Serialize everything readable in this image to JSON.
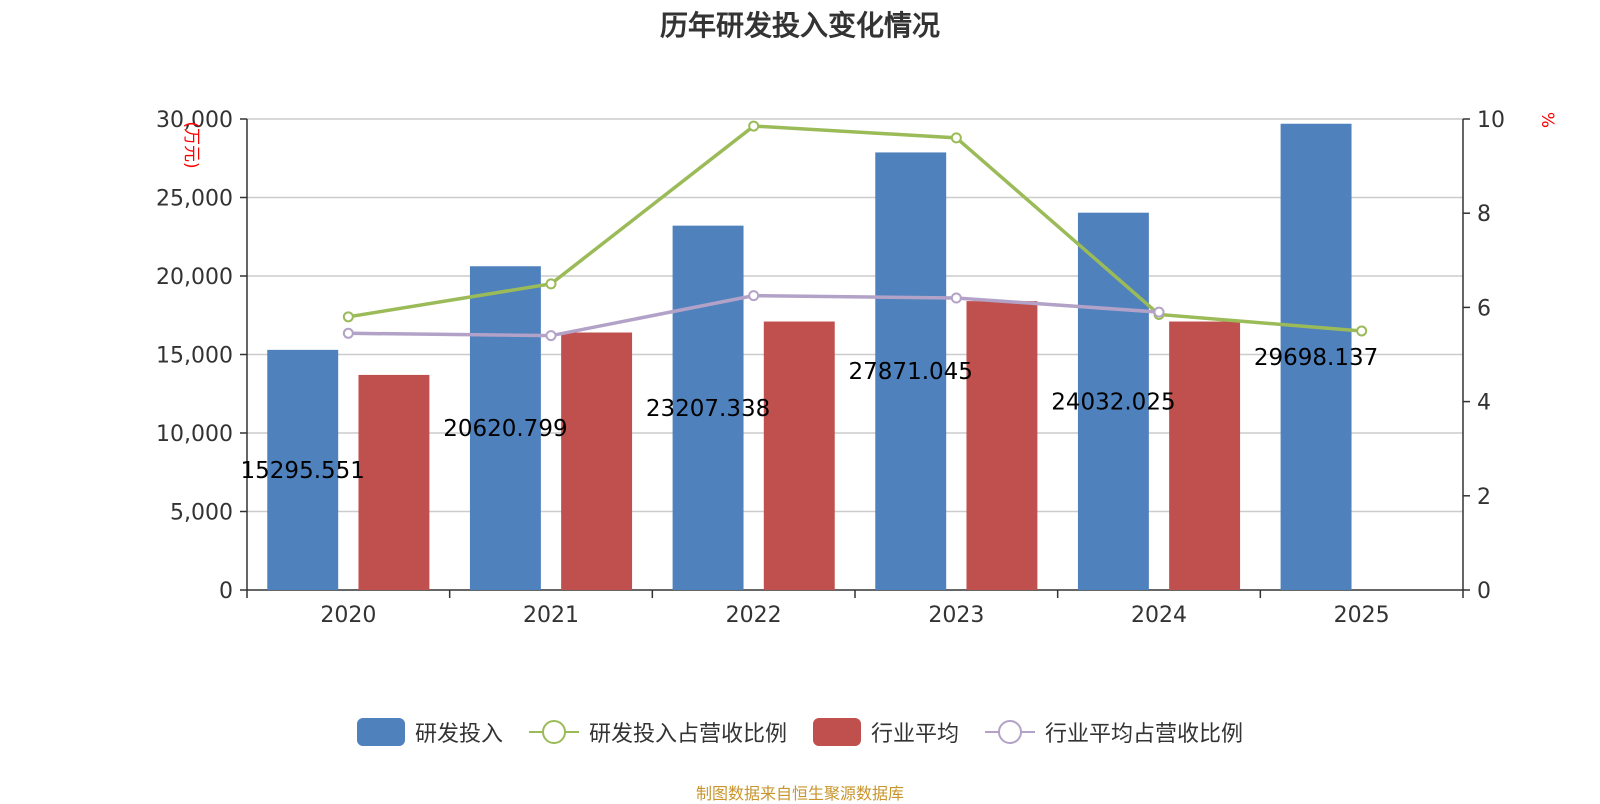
{
  "title": "历年研发投入变化情况",
  "source_note": "制图数据来自恒生聚源数据库",
  "chart_data": {
    "type": "bar",
    "title": "历年研发投入变化情况",
    "categories": [
      "2020",
      "2021",
      "2022",
      "2023",
      "2024",
      "2025"
    ],
    "y_left": {
      "unit_label": "(万元)",
      "ylim": [
        0,
        30000
      ],
      "ticks": [
        "0",
        "5,000",
        "10,000",
        "15,000",
        "20,000",
        "25,000",
        "30,000"
      ]
    },
    "y_right": {
      "unit_label": "%",
      "ylim": [
        0,
        10
      ],
      "ticks": [
        "0",
        "2",
        "4",
        "6",
        "8",
        "10"
      ]
    },
    "grid": true,
    "legend_position": "bottom",
    "series": [
      {
        "name": "研发投入",
        "type": "bar",
        "axis": "left",
        "color": "#4f81bd",
        "values": [
          15295.551,
          20620.799,
          23207.338,
          27871.045,
          24032.025,
          29698.137
        ],
        "labels": [
          "15295.551",
          "20620.799",
          "23207.338",
          "27871.045",
          "24032.025",
          "29698.137"
        ]
      },
      {
        "name": "研发投入占营收比例",
        "type": "line",
        "axis": "right",
        "color": "#9bbb59",
        "values": [
          5.8,
          6.5,
          9.85,
          9.6,
          5.85,
          5.5
        ]
      },
      {
        "name": "行业平均",
        "type": "bar",
        "axis": "left",
        "color": "#c0504d",
        "values": [
          13700,
          16400,
          17100,
          18400,
          17100,
          null
        ]
      },
      {
        "name": "行业平均占营收比例",
        "type": "line",
        "axis": "right",
        "color": "#b3a2c7",
        "values": [
          5.45,
          5.4,
          6.25,
          6.2,
          5.9,
          null
        ]
      }
    ]
  }
}
